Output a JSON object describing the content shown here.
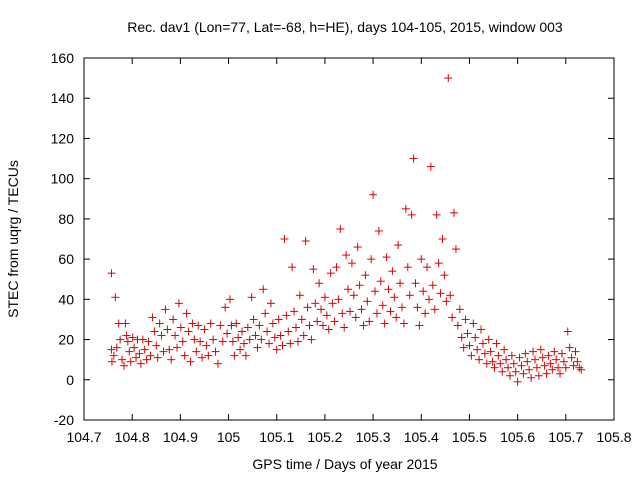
{
  "chart_data": {
    "type": "scatter",
    "title": "Rec. dav1 (Lon=77, Lat=-68, h=HE), days 104-105, 2015, window 003",
    "xlabel": "GPS time / Days of year 2015",
    "ylabel": "STEC from uqrg / TECUs",
    "xlim": [
      104.7,
      105.8
    ],
    "ylim": [
      -20,
      160
    ],
    "x_ticks": [
      104.7,
      104.8,
      104.9,
      105.0,
      105.1,
      105.2,
      105.3,
      105.4,
      105.5,
      105.6,
      105.7,
      105.8
    ],
    "x_tick_labels": [
      "104.7",
      "104.8",
      "104.9",
      "105",
      "105.1",
      "105.2",
      "105.3",
      "105.4",
      "105.5",
      "105.6",
      "105.7",
      "105.8"
    ],
    "y_ticks": [
      -20,
      0,
      20,
      40,
      60,
      80,
      100,
      120,
      140,
      160
    ],
    "y_tick_labels": [
      "-20",
      "0",
      "20",
      "40",
      "60",
      "80",
      "100",
      "120",
      "140",
      "160"
    ],
    "grid": false,
    "marker": "+",
    "marker_color": "#dd0000",
    "axis_color": "#000000",
    "series": [
      {
        "values": [
          [
            104.757,
            53
          ],
          [
            104.765,
            41
          ],
          [
            104.757,
            15
          ],
          [
            104.762,
            12
          ],
          [
            104.758,
            9
          ],
          [
            104.768,
            16
          ],
          [
            104.772,
            28
          ],
          [
            104.775,
            20
          ],
          [
            104.779,
            10
          ],
          [
            104.783,
            7
          ],
          [
            104.786,
            28
          ],
          [
            104.788,
            22
          ],
          [
            104.791,
            19
          ],
          [
            104.794,
            14
          ],
          [
            104.797,
            9
          ],
          [
            104.801,
            21
          ],
          [
            104.804,
            16
          ],
          [
            104.808,
            11
          ],
          [
            104.811,
            20
          ],
          [
            104.815,
            13
          ],
          [
            104.818,
            8
          ],
          [
            104.822,
            20
          ],
          [
            104.826,
            15
          ],
          [
            104.83,
            10
          ],
          [
            104.834,
            19
          ],
          [
            104.838,
            12
          ],
          [
            104.842,
            31
          ],
          [
            104.846,
            24
          ],
          [
            104.85,
            17
          ],
          [
            104.853,
            11
          ],
          [
            104.857,
            28
          ],
          [
            104.861,
            22
          ],
          [
            104.865,
            14
          ],
          [
            104.869,
            35
          ],
          [
            104.873,
            25
          ],
          [
            104.877,
            15
          ],
          [
            104.881,
            10
          ],
          [
            104.885,
            30
          ],
          [
            104.889,
            22
          ],
          [
            104.893,
            16
          ],
          [
            104.897,
            38
          ],
          [
            104.901,
            26
          ],
          [
            104.905,
            19
          ],
          [
            104.909,
            12
          ],
          [
            104.913,
            33
          ],
          [
            104.917,
            24
          ],
          [
            104.921,
            9
          ],
          [
            104.925,
            28
          ],
          [
            104.929,
            20
          ],
          [
            104.933,
            14
          ],
          [
            104.937,
            27
          ],
          [
            104.941,
            19
          ],
          [
            104.945,
            11
          ],
          [
            104.95,
            25
          ],
          [
            104.954,
            17
          ],
          [
            104.958,
            12
          ],
          [
            104.963,
            28
          ],
          [
            104.968,
            20
          ],
          [
            104.973,
            14
          ],
          [
            104.978,
            8
          ],
          [
            104.983,
            27
          ],
          [
            104.988,
            19
          ],
          [
            104.993,
            36
          ],
          [
            104.997,
            23
          ],
          [
            105.003,
            40
          ],
          [
            105.006,
            27
          ],
          [
            105.009,
            19
          ],
          [
            105.012,
            12
          ],
          [
            105.016,
            28
          ],
          [
            105.02,
            21
          ],
          [
            105.024,
            15
          ],
          [
            105.028,
            24
          ],
          [
            105.032,
            18
          ],
          [
            105.036,
            12
          ],
          [
            105.04,
            26
          ],
          [
            105.044,
            20
          ],
          [
            105.048,
            41
          ],
          [
            105.052,
            30
          ],
          [
            105.056,
            22
          ],
          [
            105.06,
            16
          ],
          [
            105.064,
            27
          ],
          [
            105.068,
            20
          ],
          [
            105.072,
            45
          ],
          [
            105.076,
            33
          ],
          [
            105.08,
            24
          ],
          [
            105.084,
            18
          ],
          [
            105.088,
            38
          ],
          [
            105.092,
            28
          ],
          [
            105.096,
            21
          ],
          [
            105.1,
            15
          ],
          [
            105.104,
            30
          ],
          [
            105.108,
            22
          ],
          [
            105.112,
            17
          ],
          [
            105.116,
            70
          ],
          [
            105.12,
            32
          ],
          [
            105.124,
            24
          ],
          [
            105.128,
            18
          ],
          [
            105.132,
            56
          ],
          [
            105.136,
            34
          ],
          [
            105.14,
            26
          ],
          [
            105.144,
            19
          ],
          [
            105.148,
            42
          ],
          [
            105.152,
            30
          ],
          [
            105.156,
            22
          ],
          [
            105.16,
            69
          ],
          [
            105.164,
            36
          ],
          [
            105.168,
            27
          ],
          [
            105.172,
            20
          ],
          [
            105.176,
            55
          ],
          [
            105.18,
            38
          ],
          [
            105.184,
            29
          ],
          [
            105.188,
            48
          ],
          [
            105.192,
            35
          ],
          [
            105.196,
            27
          ],
          [
            105.2,
            41
          ],
          [
            105.204,
            32
          ],
          [
            105.208,
            25
          ],
          [
            105.212,
            53
          ],
          [
            105.216,
            38
          ],
          [
            105.22,
            29
          ],
          [
            105.224,
            56
          ],
          [
            105.228,
            40
          ],
          [
            105.232,
            75
          ],
          [
            105.236,
            33
          ],
          [
            105.24,
            26
          ],
          [
            105.244,
            62
          ],
          [
            105.248,
            45
          ],
          [
            105.252,
            34
          ],
          [
            105.256,
            58
          ],
          [
            105.26,
            42
          ],
          [
            105.264,
            31
          ],
          [
            105.268,
            66
          ],
          [
            105.272,
            47
          ],
          [
            105.276,
            35
          ],
          [
            105.28,
            27
          ],
          [
            105.284,
            52
          ],
          [
            105.288,
            39
          ],
          [
            105.292,
            29
          ],
          [
            105.296,
            60
          ],
          [
            105.3,
            92
          ],
          [
            105.304,
            44
          ],
          [
            105.308,
            33
          ],
          [
            105.312,
            74
          ],
          [
            105.316,
            49
          ],
          [
            105.32,
            37
          ],
          [
            105.324,
            28
          ],
          [
            105.328,
            61
          ],
          [
            105.332,
            45
          ],
          [
            105.336,
            34
          ],
          [
            105.34,
            54
          ],
          [
            105.344,
            41
          ],
          [
            105.348,
            31
          ],
          [
            105.352,
            67
          ],
          [
            105.356,
            48
          ],
          [
            105.36,
            36
          ],
          [
            105.364,
            28
          ],
          [
            105.368,
            85
          ],
          [
            105.372,
            56
          ],
          [
            105.376,
            42
          ],
          [
            105.38,
            82
          ],
          [
            105.384,
            110
          ],
          [
            105.388,
            48
          ],
          [
            105.392,
            36
          ],
          [
            105.396,
            27
          ],
          [
            105.4,
            60
          ],
          [
            105.404,
            44
          ],
          [
            105.408,
            33
          ],
          [
            105.412,
            56
          ],
          [
            105.416,
            40
          ],
          [
            105.42,
            106
          ],
          [
            105.424,
            47
          ],
          [
            105.428,
            35
          ],
          [
            105.432,
            82
          ],
          [
            105.436,
            58
          ],
          [
            105.44,
            43
          ],
          [
            105.444,
            70
          ],
          [
            105.448,
            52
          ],
          [
            105.452,
            39
          ],
          [
            105.456,
            150
          ],
          [
            105.46,
            42
          ],
          [
            105.464,
            31
          ],
          [
            105.468,
            83
          ],
          [
            105.472,
            65
          ],
          [
            105.476,
            27
          ],
          [
            105.48,
            35
          ],
          [
            105.484,
            21
          ],
          [
            105.488,
            16
          ],
          [
            105.492,
            30
          ],
          [
            105.496,
            23
          ],
          [
            105.5,
            17
          ],
          [
            105.504,
            12
          ],
          [
            105.508,
            28
          ],
          [
            105.512,
            21
          ],
          [
            105.516,
            15
          ],
          [
            105.52,
            10
          ],
          [
            105.524,
            25
          ],
          [
            105.528,
            18
          ],
          [
            105.532,
            13
          ],
          [
            105.536,
            8
          ],
          [
            105.54,
            20
          ],
          [
            105.544,
            14
          ],
          [
            105.548,
            9
          ],
          [
            105.552,
            6
          ],
          [
            105.556,
            18
          ],
          [
            105.56,
            12
          ],
          [
            105.564,
            8
          ],
          [
            105.568,
            4
          ],
          [
            105.572,
            15
          ],
          [
            105.576,
            10
          ],
          [
            105.58,
            6
          ],
          [
            105.584,
            2
          ],
          [
            105.588,
            12
          ],
          [
            105.592,
            8
          ],
          [
            105.596,
            4
          ],
          [
            105.6,
            -1
          ],
          [
            105.604,
            11
          ],
          [
            105.608,
            7
          ],
          [
            105.612,
            3
          ],
          [
            105.616,
            13
          ],
          [
            105.62,
            9
          ],
          [
            105.624,
            5
          ],
          [
            105.628,
            1
          ],
          [
            105.632,
            14
          ],
          [
            105.636,
            10
          ],
          [
            105.64,
            6
          ],
          [
            105.644,
            2
          ],
          [
            105.648,
            15
          ],
          [
            105.652,
            11
          ],
          [
            105.656,
            7
          ],
          [
            105.66,
            3
          ],
          [
            105.664,
            12
          ],
          [
            105.668,
            8
          ],
          [
            105.672,
            5
          ],
          [
            105.676,
            14
          ],
          [
            105.68,
            10
          ],
          [
            105.684,
            6
          ],
          [
            105.688,
            3
          ],
          [
            105.692,
            13
          ],
          [
            105.696,
            9
          ],
          [
            105.7,
            6
          ],
          [
            105.704,
            24
          ],
          [
            105.708,
            16
          ],
          [
            105.712,
            11
          ],
          [
            105.716,
            7
          ],
          [
            105.72,
            14
          ],
          [
            105.724,
            9
          ],
          [
            105.728,
            6
          ],
          [
            105.732,
            5
          ]
        ]
      }
    ]
  }
}
